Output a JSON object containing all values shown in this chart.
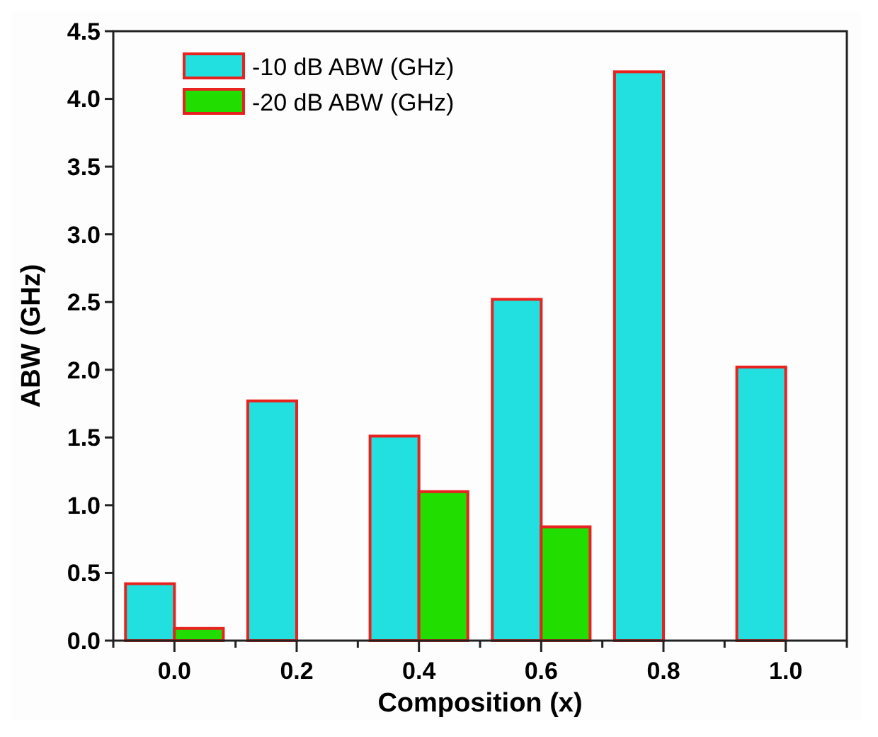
{
  "chart_data": {
    "type": "bar",
    "xlabel": "Composition (x)",
    "ylabel": "ABW (GHz)",
    "categories": [
      "0.0",
      "0.2",
      "0.4",
      "0.6",
      "0.8",
      "1.0"
    ],
    "series": [
      {
        "name": "-10 dB ABW (GHz)",
        "color": "#22e0e0",
        "values": [
          0.42,
          1.77,
          1.51,
          2.52,
          4.2,
          2.02
        ]
      },
      {
        "name": "-20 dB ABW (GHz)",
        "color": "#22dd00",
        "values": [
          0.09,
          null,
          1.1,
          0.84,
          null,
          null
        ]
      }
    ],
    "ylim": [
      0,
      4.5
    ],
    "yticks": [
      {
        "value": 0,
        "label": "0.0"
      },
      {
        "value": 0.5,
        "label": "0.5"
      },
      {
        "value": 1,
        "label": "1.0"
      },
      {
        "value": 1.5,
        "label": "1.5"
      },
      {
        "value": 2,
        "label": "2.0"
      },
      {
        "value": 2.5,
        "label": "2.5"
      },
      {
        "value": 3,
        "label": "3.0"
      },
      {
        "value": 3.5,
        "label": "3.5"
      },
      {
        "value": 4,
        "label": "4.0"
      },
      {
        "value": 4.5,
        "label": "4.5"
      }
    ],
    "grid": false,
    "legend": "top left"
  }
}
